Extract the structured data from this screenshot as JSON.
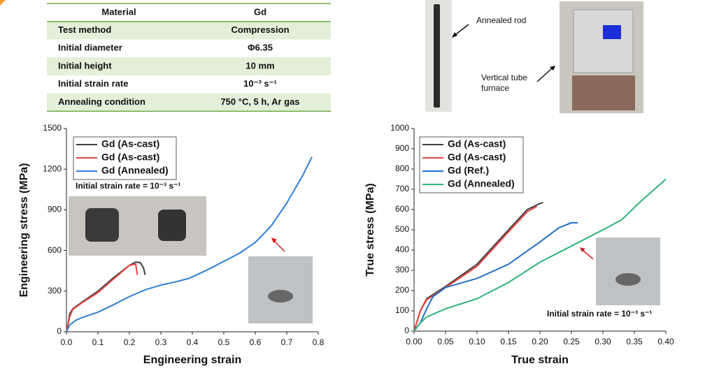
{
  "table": {
    "rows": [
      [
        "Material",
        "Gd"
      ],
      [
        "Test method",
        "Compression"
      ],
      [
        "Initial diameter",
        "Φ6.35"
      ],
      [
        "Initial height",
        "10 mm"
      ],
      [
        "Initial strain rate",
        "10⁻³ s⁻¹"
      ],
      [
        "Annealing condition",
        "750 °C, 5 h, Ar gas"
      ]
    ]
  },
  "photo_labels": {
    "rod": "Annealed rod",
    "furnace": "Vertical tube furnace"
  },
  "chart_data": [
    {
      "type": "line",
      "x_label": "Engineering strain",
      "y_label": "Engineering stress (MPa)",
      "annotation": "Initial strain rate = 10⁻³ s⁻¹",
      "legend": "upper left",
      "grid": false,
      "xlim": [
        0,
        0.8
      ],
      "xticks": [
        {
          "value": 0,
          "label": "0.0"
        },
        0.1,
        0.2,
        0.3,
        0.4,
        0.5,
        0.6,
        0.7,
        0.8
      ],
      "ylim": [
        0,
        1500
      ],
      "yticks": [
        0,
        300,
        600,
        900,
        1200,
        1500
      ],
      "series": [
        {
          "name": "Gd (As-cast)",
          "color": "#404040",
          "x": [
            0,
            0.005,
            0.01,
            0.02,
            0.05,
            0.1,
            0.15,
            0.2,
            0.22,
            0.235,
            0.245,
            0.25
          ],
          "values": [
            0,
            60,
            130,
            170,
            220,
            300,
            400,
            490,
            515,
            510,
            470,
            420
          ]
        },
        {
          "name": "Gd (As-cast)",
          "color": "#e8413c",
          "x": [
            0,
            0.01,
            0.02,
            0.05,
            0.1,
            0.15,
            0.2,
            0.22,
            0.225
          ],
          "values": [
            0,
            110,
            165,
            215,
            290,
            390,
            490,
            500,
            420
          ]
        },
        {
          "name": "Gd (Annealed)",
          "color": "#2e7fd6",
          "x": [
            0,
            0.01,
            0.03,
            0.05,
            0.1,
            0.15,
            0.2,
            0.25,
            0.3,
            0.35,
            0.39,
            0.45,
            0.5,
            0.55,
            0.6,
            0.65,
            0.7,
            0.75,
            0.78
          ],
          "values": [
            0,
            50,
            85,
            105,
            145,
            200,
            260,
            310,
            345,
            370,
            395,
            460,
            520,
            580,
            660,
            780,
            950,
            1150,
            1290
          ]
        }
      ]
    },
    {
      "type": "line",
      "x_label": "True strain",
      "y_label": "True stress (MPa)",
      "annotation": "Initial strain rate = 10⁻³ s⁻¹",
      "legend": "upper left",
      "grid": false,
      "xlim": [
        0,
        0.4
      ],
      "xticks": [
        {
          "value": 0,
          "label": "0.00"
        },
        0.05,
        {
          "value": 0.1,
          "label": "0.10"
        },
        0.15,
        {
          "value": 0.2,
          "label": "0.20"
        },
        0.25,
        {
          "value": 0.3,
          "label": "0.30"
        },
        0.35,
        {
          "value": 0.4,
          "label": "0.40"
        }
      ],
      "ylim": [
        0,
        1000
      ],
      "yticks": [
        0,
        100,
        200,
        300,
        400,
        500,
        600,
        700,
        800,
        900,
        1000
      ],
      "series": [
        {
          "name": "Gd (As-cast)",
          "color": "#404040",
          "x": [
            0,
            0.01,
            0.02,
            0.05,
            0.1,
            0.15,
            0.18,
            0.2,
            0.205
          ],
          "values": [
            0,
            100,
            160,
            220,
            330,
            500,
            600,
            630,
            635
          ]
        },
        {
          "name": "Gd (As-cast)",
          "color": "#e8413c",
          "x": [
            0,
            0.01,
            0.02,
            0.05,
            0.1,
            0.15,
            0.18,
            0.195
          ],
          "values": [
            0,
            100,
            155,
            215,
            320,
            490,
            590,
            615
          ]
        },
        {
          "name": "Gd (Ref.)",
          "color": "#1f6fc7",
          "x": [
            0,
            0.01,
            0.02,
            0.03,
            0.05,
            0.1,
            0.15,
            0.2,
            0.23,
            0.25,
            0.26
          ],
          "values": [
            0,
            40,
            110,
            170,
            215,
            260,
            330,
            440,
            510,
            535,
            535
          ]
        },
        {
          "name": "Gd (Annealed)",
          "color": "#2fb37a",
          "x": [
            0,
            0.01,
            0.02,
            0.05,
            0.1,
            0.15,
            0.2,
            0.25,
            0.3,
            0.33,
            0.36,
            0.4
          ],
          "values": [
            0,
            40,
            70,
            110,
            160,
            240,
            340,
            420,
            500,
            550,
            640,
            750
          ]
        }
      ]
    }
  ]
}
